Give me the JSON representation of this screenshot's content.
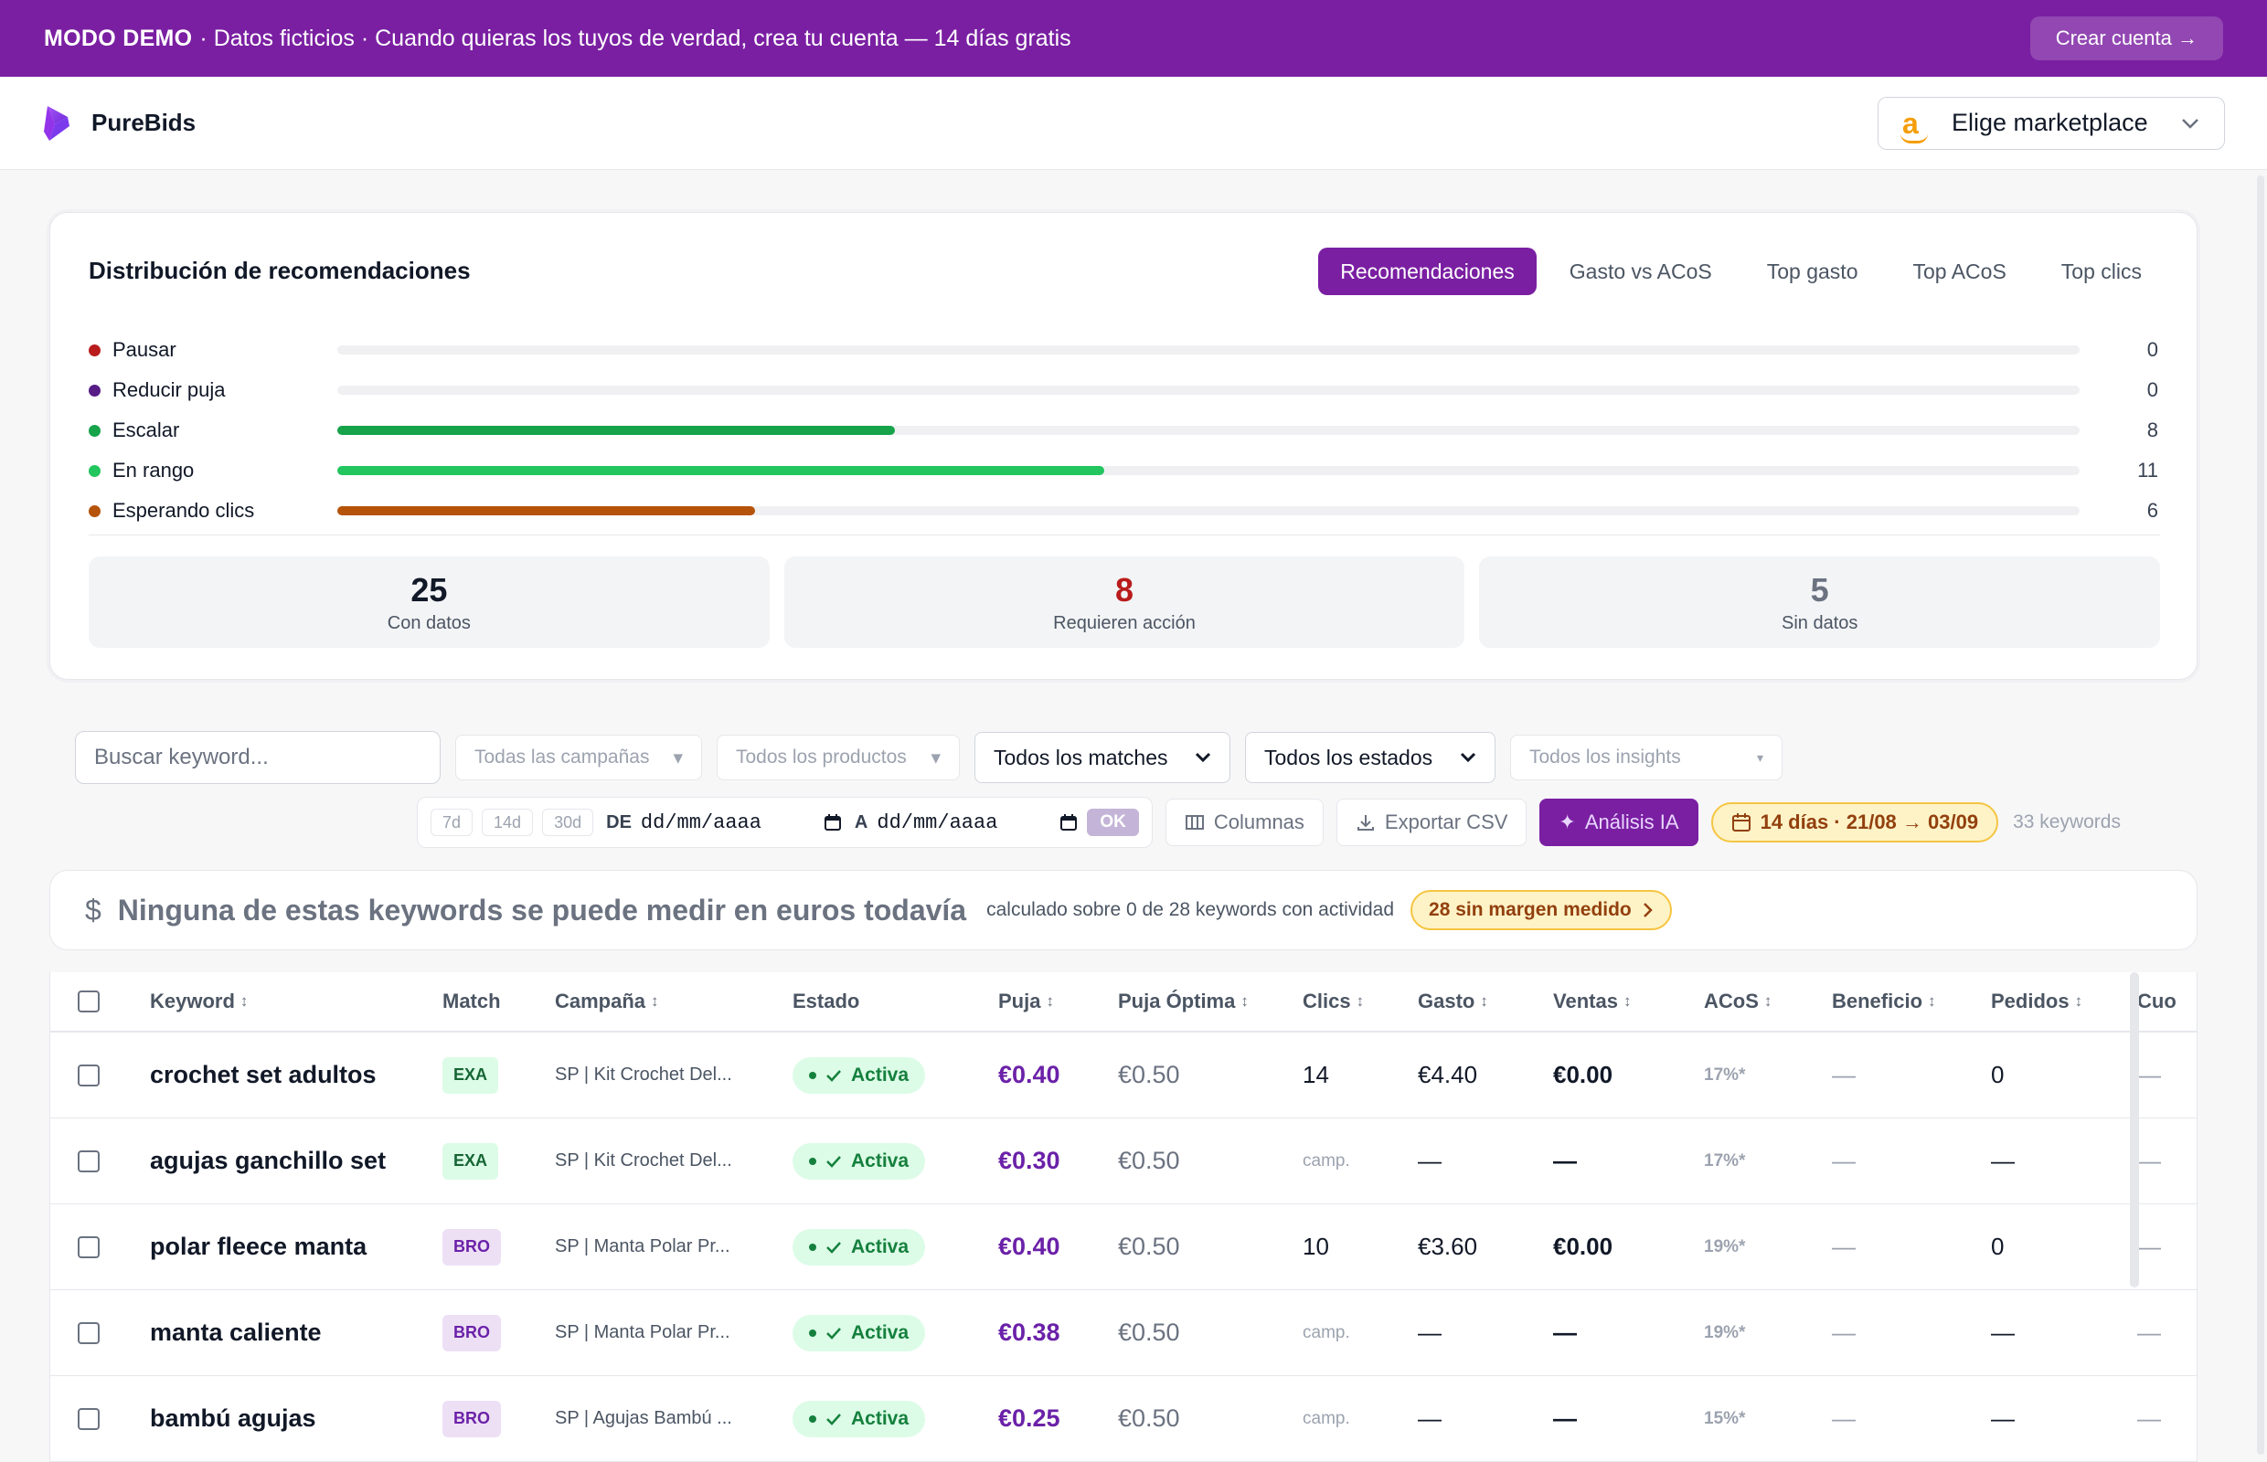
{
  "banner": {
    "mode": "MODO DEMO",
    "message": "· Datos ficticios · Cuando quieras los tuyos de verdad, crea tu cuenta — 14 días gratis",
    "cta": "Crear cuenta →"
  },
  "nav": {
    "brand": "PureBids",
    "marketplace_label": "Elige marketplace",
    "marketplace_icon": "a"
  },
  "distribution": {
    "title": "Distribución de recomendaciones",
    "tabs": [
      "Recomendaciones",
      "Gasto vs ACoS",
      "Top gasto",
      "Top ACoS",
      "Top clics"
    ],
    "active_tab": "Recomendaciones",
    "max_value": 25,
    "bars": [
      {
        "label": "Pausar",
        "value": 0,
        "color": "#b91c1c"
      },
      {
        "label": "Reducir puja",
        "value": 0,
        "color": "#581c87"
      },
      {
        "label": "Escalar",
        "value": 8,
        "color": "#16a34a"
      },
      {
        "label": "En rango",
        "value": 11,
        "color": "#22c55e"
      },
      {
        "label": "Esperando clics",
        "value": 6,
        "color": "#b45309"
      }
    ],
    "stats": [
      {
        "value": "25",
        "caption": "Con datos"
      },
      {
        "value": "8",
        "caption": "Requieren acción"
      },
      {
        "value": "5",
        "caption": "Sin datos"
      }
    ]
  },
  "filters": {
    "search_placeholder": "Buscar keyword...",
    "campaigns": "Todas las campañas",
    "products": "Todos los productos",
    "matches": "Todos los matches",
    "states": "Todos los estados",
    "insights": "Todos los insights",
    "quick_ranges": [
      "7d",
      "14d",
      "30d"
    ],
    "from_label": "DE",
    "to_label": "A",
    "date_placeholder": "dd/mm/aaaa",
    "ok": "OK",
    "columns": "Columnas",
    "export": "Exportar CSV",
    "ai": "Análisis IA",
    "range": "14 días · 21/08 → 03/09",
    "count": "33 keywords"
  },
  "money": {
    "symbol": "$",
    "message": "Ninguna de estas keywords se puede medir en euros todavía",
    "sub": "calculado sobre 0 de 28 keywords con actividad",
    "pill": "28 sin margen medido"
  },
  "table": {
    "headers": [
      "Keyword",
      "Match",
      "Campaña",
      "Estado",
      "Puja",
      "Puja Óptima",
      "Clics",
      "Gasto",
      "Ventas",
      "ACoS",
      "Beneficio",
      "Pedidos",
      "Cuo"
    ],
    "rows": [
      {
        "keyword": "crochet set adultos",
        "match": "EXA",
        "campaign": "SP | Kit Crochet Del...",
        "status": "Activa",
        "bid": "€0.40",
        "optimal": "€0.50",
        "clicks": "14",
        "spend": "€4.40",
        "sales": "€0.00",
        "acos": "17%*",
        "profit": "—",
        "orders": "0",
        "quota": "—"
      },
      {
        "keyword": "agujas ganchillo set",
        "match": "EXA",
        "campaign": "SP | Kit Crochet Del...",
        "status": "Activa",
        "bid": "€0.30",
        "optimal": "€0.50",
        "clicks": "camp.",
        "spend": "—",
        "sales": "—",
        "acos": "17%*",
        "profit": "—",
        "orders": "—",
        "quota": "—"
      },
      {
        "keyword": "polar fleece manta",
        "match": "BRO",
        "campaign": "SP | Manta Polar Pr...",
        "status": "Activa",
        "bid": "€0.40",
        "optimal": "€0.50",
        "clicks": "10",
        "spend": "€3.60",
        "sales": "€0.00",
        "acos": "19%*",
        "profit": "—",
        "orders": "0",
        "quota": "—"
      },
      {
        "keyword": "manta caliente",
        "match": "BRO",
        "campaign": "SP | Manta Polar Pr...",
        "status": "Activa",
        "bid": "€0.38",
        "optimal": "€0.50",
        "clicks": "camp.",
        "spend": "—",
        "sales": "—",
        "acos": "19%*",
        "profit": "—",
        "orders": "—",
        "quota": "—"
      },
      {
        "keyword": "bambú agujas",
        "match": "BRO",
        "campaign": "SP | Agujas Bambú ...",
        "status": "Activa",
        "bid": "€0.25",
        "optimal": "€0.50",
        "clicks": "camp.",
        "spend": "—",
        "sales": "—",
        "acos": "15%*",
        "profit": "—",
        "orders": "—",
        "quota": "—"
      }
    ]
  }
}
